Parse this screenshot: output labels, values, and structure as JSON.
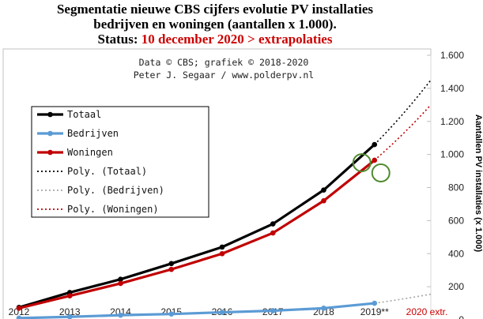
{
  "chart_data": {
    "type": "line",
    "title_lines": [
      "Segmentatie nieuwe CBS cijfers evolutie PV installaties",
      "bedrijven en woningen (aantallen x 1.000)."
    ],
    "status_label": "Status:",
    "status_value": "10 december 2020 > extrapolaties",
    "credit_line1": "Data © CBS; grafiek © 2018-2020",
    "credit_line2": "Peter J. Segaar / www.polderpv.nl",
    "ylabel": "Aantallen PV installaties (x 1.000)",
    "ylim": [
      0,
      1600
    ],
    "y_ticks": [
      0,
      200,
      400,
      600,
      800,
      1000,
      1200,
      1400,
      1600
    ],
    "y_tick_labels": [
      "0",
      "200",
      "400",
      "600",
      "800",
      "1.000",
      "1.200",
      "1.400",
      "1.600"
    ],
    "x_tick_labels": [
      "2012",
      "2013",
      "2014",
      "2015",
      "2016",
      "2017",
      "2018",
      "2019**",
      "2020 extr."
    ],
    "grid": false,
    "legend_position": "left",
    "series": [
      {
        "name": "Totaal",
        "color": "#000000",
        "values": [
          75,
          165,
          245,
          340,
          440,
          580,
          785,
          1060
        ]
      },
      {
        "name": "Bedrijven",
        "color": "#5b9bd5",
        "values": [
          10,
          18,
          28,
          35,
          45,
          55,
          70,
          100
        ]
      },
      {
        "name": "Woningen",
        "color": "#c00000",
        "values": [
          70,
          145,
          220,
          305,
          400,
          525,
          720,
          965
        ]
      }
    ],
    "trendlines": [
      {
        "name": "Poly. (Totaal)",
        "color": "#000000",
        "to_value_2021": 1450
      },
      {
        "name": "Poly. (Bedrijven)",
        "color": "#a6a6a6",
        "to_value_2021": 155
      },
      {
        "name": "Poly. (Woningen)",
        "color": "#c00000",
        "to_value_2021": 1300
      }
    ],
    "highlight_circles": [
      "green circle on Totaal 2019",
      "green circle on Woningen 2019"
    ]
  }
}
